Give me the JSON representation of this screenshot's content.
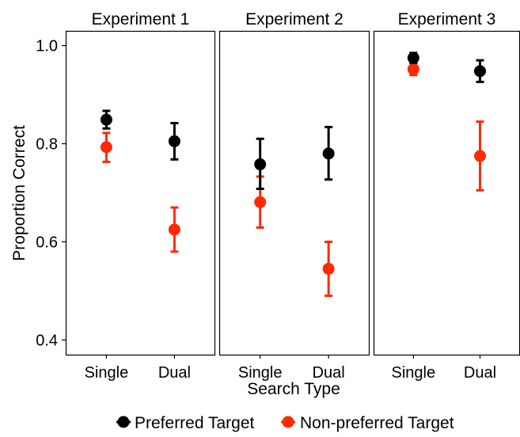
{
  "chart_data": {
    "type": "scatter",
    "subtype": "point-with-errorbars, faceted",
    "xlabel": "Search Type",
    "ylabel": "Proportion Correct",
    "ylim": [
      0.37,
      1.03
    ],
    "yticks": [
      0.4,
      0.6,
      0.8,
      1.0
    ],
    "ytick_labels": [
      "0.4",
      "0.6",
      "0.8",
      "1.0"
    ],
    "categories": [
      "Single",
      "Dual"
    ],
    "grid": false,
    "legend_position": "bottom",
    "series": [
      {
        "name": "Preferred Target",
        "color": "#000000"
      },
      {
        "name": "Non-preferred Target",
        "color": "#ff2a00"
      }
    ],
    "facets": [
      {
        "title": "Experiment 1",
        "points": [
          {
            "series": "Preferred Target",
            "category": "Single",
            "y": 0.849,
            "lo": 0.831,
            "hi": 0.867
          },
          {
            "series": "Non-preferred Target",
            "category": "Single",
            "y": 0.793,
            "lo": 0.763,
            "hi": 0.822
          },
          {
            "series": "Preferred Target",
            "category": "Dual",
            "y": 0.805,
            "lo": 0.768,
            "hi": 0.842
          },
          {
            "series": "Non-preferred Target",
            "category": "Dual",
            "y": 0.625,
            "lo": 0.58,
            "hi": 0.67
          }
        ]
      },
      {
        "title": "Experiment 2",
        "points": [
          {
            "series": "Preferred Target",
            "category": "Single",
            "y": 0.758,
            "lo": 0.708,
            "hi": 0.81
          },
          {
            "series": "Non-preferred Target",
            "category": "Single",
            "y": 0.681,
            "lo": 0.629,
            "hi": 0.733
          },
          {
            "series": "Preferred Target",
            "category": "Dual",
            "y": 0.78,
            "lo": 0.727,
            "hi": 0.834
          },
          {
            "series": "Non-preferred Target",
            "category": "Dual",
            "y": 0.545,
            "lo": 0.49,
            "hi": 0.6
          }
        ]
      },
      {
        "title": "Experiment 3",
        "points": [
          {
            "series": "Preferred Target",
            "category": "Single",
            "y": 0.975,
            "lo": 0.965,
            "hi": 0.985
          },
          {
            "series": "Non-preferred Target",
            "category": "Single",
            "y": 0.952,
            "lo": 0.94,
            "hi": 0.964
          },
          {
            "series": "Preferred Target",
            "category": "Dual",
            "y": 0.948,
            "lo": 0.926,
            "hi": 0.97
          },
          {
            "series": "Non-preferred Target",
            "category": "Dual",
            "y": 0.775,
            "lo": 0.705,
            "hi": 0.845
          }
        ]
      }
    ]
  }
}
